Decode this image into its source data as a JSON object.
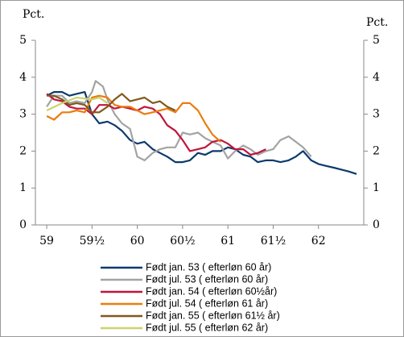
{
  "chart_data": {
    "type": "line",
    "y_label": "Pct.",
    "y2_label": "Pct.",
    "xlim": [
      58.875,
      62.5
    ],
    "ylim": [
      0,
      5
    ],
    "y2lim": [
      0,
      5
    ],
    "xticks": [
      59,
      {
        "value": 59.5,
        "label": "59½"
      },
      60,
      {
        "value": 60.5,
        "label": "60½"
      },
      61,
      {
        "value": 61.5,
        "label": "61½"
      },
      62
    ],
    "yticks": [
      0,
      1,
      2,
      3,
      4,
      5
    ],
    "y2ticks": [
      0,
      1,
      2,
      3,
      4,
      5
    ],
    "series": [
      {
        "name": "Født jan. 53 ( efterløn 60 år)",
        "color": "#0b3a6e",
        "x": [
          59,
          59.08,
          59.17,
          59.25,
          59.33,
          59.42,
          59.5,
          59.58,
          59.67,
          59.75,
          59.83,
          59.92,
          60,
          60.08,
          60.17,
          60.25,
          60.33,
          60.42,
          60.5,
          60.58,
          60.67,
          60.75,
          60.83,
          60.92,
          61,
          61.08,
          61.17,
          61.25,
          61.33,
          61.42,
          61.5,
          61.58,
          61.67,
          61.75,
          61.83,
          61.92,
          62,
          62.08,
          62.17,
          62.25,
          62.33,
          62.42
        ],
        "values": [
          3.5,
          3.6,
          3.6,
          3.5,
          3.55,
          3.6,
          3.0,
          2.75,
          2.8,
          2.7,
          2.55,
          2.3,
          2.2,
          2.25,
          2.05,
          1.95,
          1.85,
          1.7,
          1.7,
          1.75,
          1.95,
          1.9,
          2.0,
          2.0,
          2.1,
          2.05,
          1.9,
          1.85,
          1.7,
          1.75,
          1.75,
          1.7,
          1.75,
          1.85,
          2.0,
          1.75,
          1.65,
          1.6,
          1.55,
          1.5,
          1.45,
          1.38
        ]
      },
      {
        "name": "Født jul. 53 ( efterløn 60 år)",
        "color": "#a3a3a3",
        "x": [
          59,
          59.08,
          59.17,
          59.25,
          59.33,
          59.42,
          59.5,
          59.54,
          59.62,
          59.67,
          59.75,
          59.83,
          59.92,
          60,
          60.08,
          60.17,
          60.25,
          60.33,
          60.42,
          60.5,
          60.58,
          60.67,
          60.75,
          60.83,
          60.92,
          61,
          61.08,
          61.17,
          61.25,
          61.33,
          61.42,
          61.5,
          61.58,
          61.67,
          61.75,
          61.83,
          61.92
        ],
        "values": [
          3.2,
          3.5,
          3.5,
          3.3,
          3.35,
          3.3,
          3.6,
          3.9,
          3.75,
          3.4,
          3.0,
          2.75,
          2.6,
          1.85,
          1.75,
          1.95,
          2.05,
          2.1,
          2.1,
          2.5,
          2.45,
          2.5,
          2.35,
          2.25,
          2.15,
          1.8,
          2.0,
          2.15,
          2.05,
          1.9,
          2.0,
          2.05,
          2.3,
          2.4,
          2.25,
          2.1,
          1.85
        ]
      },
      {
        "name": "Født jan. 54 ( efterløn 60½år)",
        "color": "#c0143c",
        "x": [
          59,
          59.08,
          59.17,
          59.25,
          59.33,
          59.42,
          59.5,
          59.58,
          59.67,
          59.75,
          59.83,
          59.92,
          60,
          60.08,
          60.17,
          60.25,
          60.33,
          60.42,
          60.5,
          60.58,
          60.67,
          60.75,
          60.83,
          60.92,
          61,
          61.08,
          61.17,
          61.25,
          61.33,
          61.42
        ],
        "values": [
          3.55,
          3.4,
          3.35,
          3.2,
          3.15,
          3.15,
          3.0,
          3.25,
          3.25,
          3.15,
          3.2,
          3.15,
          3.1,
          3.2,
          3.15,
          3.0,
          2.7,
          2.55,
          2.3,
          2.0,
          2.05,
          2.1,
          2.25,
          2.3,
          2.2,
          2.05,
          2.05,
          1.9,
          1.95,
          2.05
        ]
      },
      {
        "name": "Født jul. 54 ( efterløn 61 år)",
        "color": "#ea7d0e",
        "x": [
          59,
          59.08,
          59.17,
          59.25,
          59.33,
          59.42,
          59.5,
          59.58,
          59.67,
          59.75,
          59.83,
          59.92,
          60,
          60.08,
          60.17,
          60.25,
          60.33,
          60.42,
          60.5,
          60.58,
          60.67,
          60.75,
          60.83,
          60.92
        ],
        "values": [
          2.95,
          2.85,
          3.05,
          3.05,
          3.1,
          3.05,
          3.45,
          3.5,
          3.45,
          3.25,
          3.2,
          3.2,
          3.1,
          3.0,
          3.05,
          3.1,
          3.15,
          3.05,
          3.3,
          3.3,
          3.1,
          2.75,
          2.45,
          2.25
        ]
      },
      {
        "name": "Født jan. 55 ( efterløn 61½ år)",
        "color": "#80591c",
        "x": [
          59,
          59.08,
          59.17,
          59.25,
          59.33,
          59.42,
          59.5,
          59.58,
          59.67,
          59.75,
          59.83,
          59.92,
          60,
          60.08,
          60.17,
          60.25,
          60.33,
          60.42
        ],
        "values": [
          3.5,
          3.5,
          3.4,
          3.25,
          3.3,
          3.25,
          3.05,
          3.05,
          3.2,
          3.4,
          3.55,
          3.35,
          3.4,
          3.45,
          3.3,
          3.35,
          3.2,
          3.1
        ]
      },
      {
        "name": "Født jul. 55 ( efterløn 62 år)",
        "color": "#c9d46e",
        "x": [
          59,
          59.17,
          59.33,
          59.5,
          59.58,
          59.67
        ],
        "values": [
          3.1,
          3.3,
          3.45,
          3.4,
          3.45,
          3.3
        ]
      }
    ]
  }
}
